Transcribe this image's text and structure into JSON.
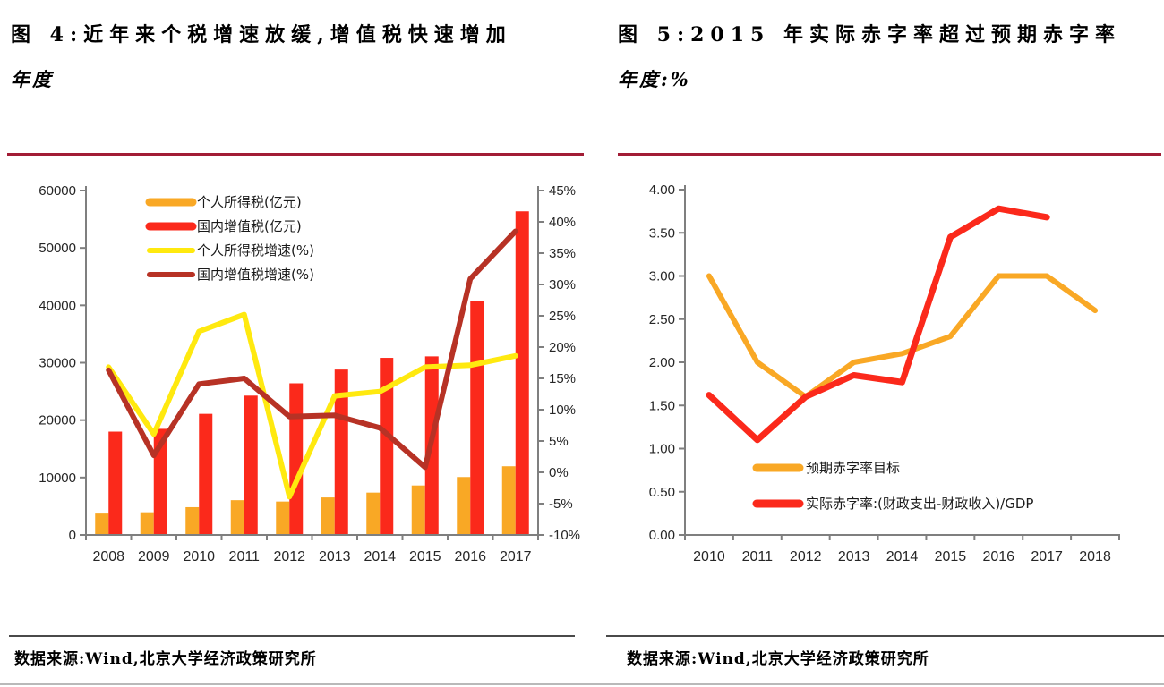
{
  "figures": [
    {
      "title": "图 4:近年来个税增速放缓,增值税快速增加",
      "subtitle": "年度",
      "source": "数据来源:Wind,北京大学经济政策研究所"
    },
    {
      "title": "图 5:2015 年实际赤字率超过预期赤字率",
      "subtitle": "年度:%",
      "source": "数据来源:Wind,北京大学经济政策研究所"
    }
  ],
  "colors": {
    "orange": "#F9A825",
    "red": "#FB291B",
    "yellow": "#FFE90F",
    "dark_red": "#B73225",
    "title_rule": "#A21C35",
    "axis": "#7f7f7f"
  },
  "chart_data": [
    {
      "type": "bar+line",
      "title": "图 4:近年来个税增速放缓,增值税快速增加",
      "subtitle": "年度",
      "grid": false,
      "legend_position": "top-left-inside",
      "categories": [
        "2008",
        "2009",
        "2010",
        "2011",
        "2012",
        "2013",
        "2014",
        "2015",
        "2016",
        "2017"
      ],
      "bar_series": [
        {
          "name": "个人所得税(亿元)",
          "color": "#F9A825",
          "axis": "left",
          "values": [
            3722,
            3949,
            4837,
            6054,
            5820,
            6531,
            7377,
            8618,
            10089,
            11966
          ]
        },
        {
          "name": "国内增值税(亿元)",
          "color": "#FB291B",
          "axis": "left",
          "values": [
            17997,
            18481,
            21093,
            24267,
            26416,
            28810,
            30850,
            31109,
            40712,
            56378
          ]
        }
      ],
      "line_series": [
        {
          "name": "个人所得税增速(%)",
          "color": "#FFE90F",
          "axis": "right",
          "values": [
            16.8,
            6.1,
            22.5,
            25.2,
            -3.9,
            12.2,
            12.9,
            16.8,
            17.1,
            18.6
          ]
        },
        {
          "name": "国内增值税增速(%)",
          "color": "#B73225",
          "axis": "right",
          "values": [
            16.3,
            2.7,
            14.1,
            15.0,
            8.9,
            9.1,
            7.1,
            0.8,
            30.9,
            38.5
          ]
        }
      ],
      "left_axis": {
        "min": 0,
        "max": 60000,
        "tick_values": [
          0,
          10000,
          20000,
          30000,
          40000,
          50000,
          60000
        ],
        "tick_labels": [
          "0",
          "10000",
          "20000",
          "30000",
          "40000",
          "50000",
          "60000"
        ]
      },
      "right_axis": {
        "min": -10,
        "max": 45,
        "tick_values": [
          -10,
          -5,
          0,
          5,
          10,
          15,
          20,
          25,
          30,
          35,
          40,
          45
        ],
        "tick_labels": [
          "-10%",
          "-5%",
          "0%",
          "5%",
          "10%",
          "15%",
          "20%",
          "25%",
          "30%",
          "35%",
          "40%",
          "45%"
        ]
      }
    },
    {
      "type": "line",
      "title": "图 5:2015 年实际赤字率超过预期赤字率",
      "subtitle": "年度:%",
      "grid": false,
      "legend_position": "bottom-center-inside",
      "categories": [
        "2010",
        "2011",
        "2012",
        "2013",
        "2014",
        "2015",
        "2016",
        "2017",
        "2018"
      ],
      "line_series": [
        {
          "name": "预期赤字率目标",
          "color": "#F9A825",
          "axis": "left",
          "values": [
            3.0,
            2.0,
            1.6,
            2.0,
            2.1,
            2.3,
            3.0,
            3.0,
            2.6
          ]
        },
        {
          "name": "实际赤字率:(财政支出-财政收入)/GDP",
          "color": "#FB291B",
          "axis": "left",
          "values": [
            1.62,
            1.1,
            1.6,
            1.85,
            1.77,
            3.45,
            3.78,
            3.68
          ]
        }
      ],
      "left_axis": {
        "min": 0,
        "max": 4,
        "tick_values": [
          0,
          0.5,
          1,
          1.5,
          2,
          2.5,
          3,
          3.5,
          4
        ],
        "tick_labels": [
          "0.00",
          "0.50",
          "1.00",
          "1.50",
          "2.00",
          "2.50",
          "3.00",
          "3.50",
          "4.00"
        ]
      }
    }
  ]
}
